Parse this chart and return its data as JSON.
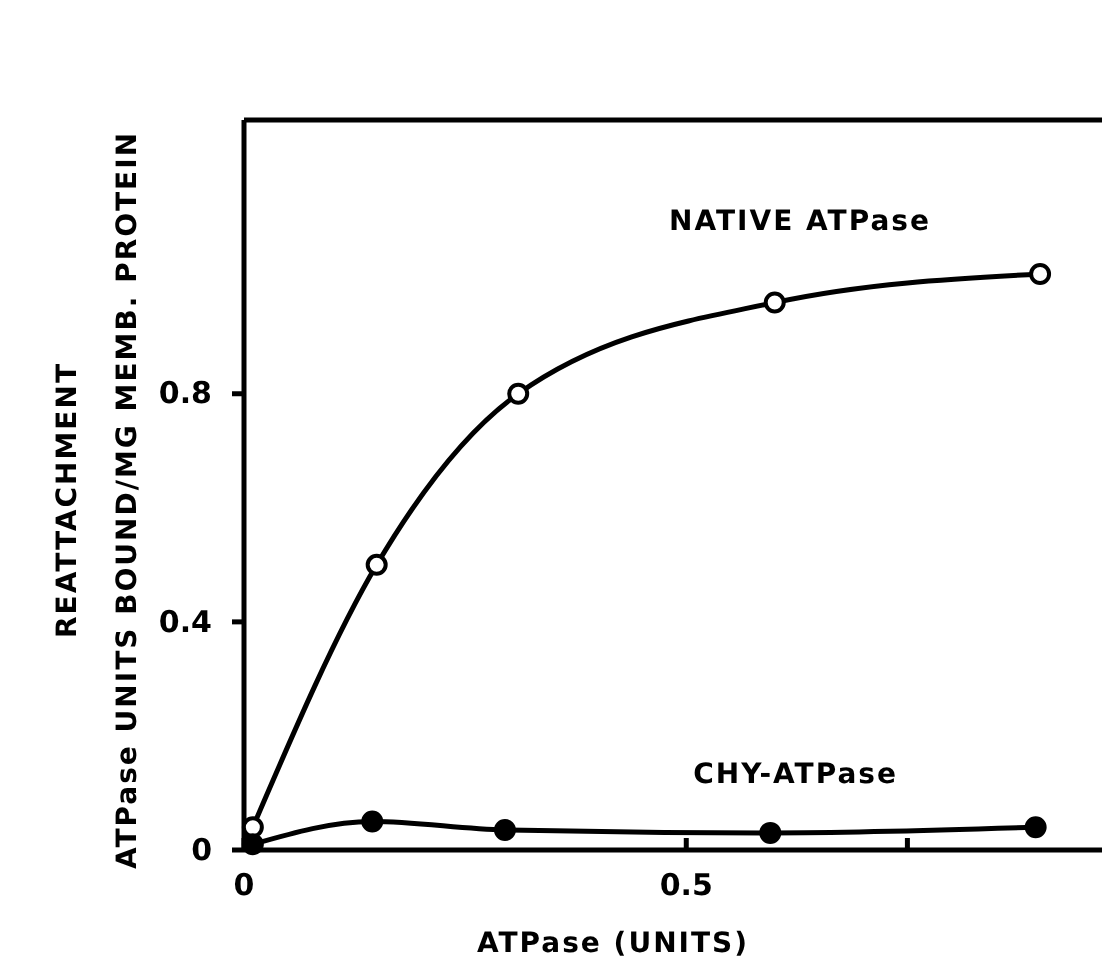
{
  "chart_data": {
    "type": "line",
    "xlabel": "ATPase (UNITS)",
    "ylabel": "REATTACHMENT\nATPase UNITS BOUND/MG MEMB. PROTEIN",
    "xlim": [
      0,
      0.97
    ],
    "ylim": [
      0,
      1.28
    ],
    "xticks": [
      0,
      0.5,
      {
        "value": 0.75,
        "label": null
      }
    ],
    "yticks": [
      0,
      0.4,
      0.8
    ],
    "line_style": "solid",
    "grid": false,
    "series": [
      {
        "name": "NATIVE ATPase",
        "color": "#000000",
        "marker": "open-circle",
        "x": [
          0.01,
          0.15,
          0.31,
          0.6,
          0.9
        ],
        "values": [
          0.04,
          0.5,
          0.8,
          0.96,
          1.01
        ]
      },
      {
        "name": "CHY-ATPase",
        "color": "#000000",
        "marker": "circle",
        "x": [
          0.01,
          0.145,
          0.295,
          0.595,
          0.895
        ],
        "values": [
          0.01,
          0.05,
          0.035,
          0.03,
          0.04
        ]
      }
    ]
  }
}
